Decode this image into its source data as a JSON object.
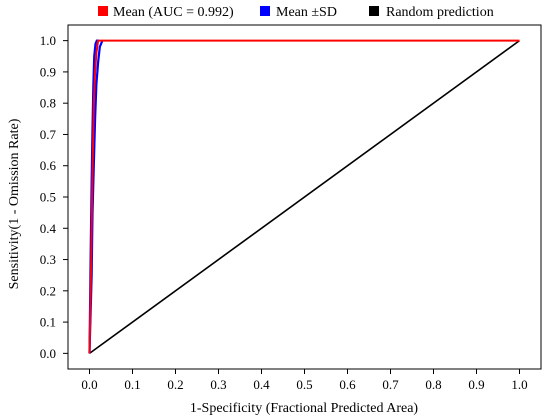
{
  "chart_data": {
    "type": "line",
    "title": "",
    "xlabel": "1-Specificity (Fractional Predicted Area)",
    "ylabel": "Sensitivity(1 - Omission Rate)",
    "xlim": [
      -0.05,
      1.05
    ],
    "ylim": [
      -0.05,
      1.05
    ],
    "x_ticks": [
      0.0,
      0.1,
      0.2,
      0.3,
      0.4,
      0.5,
      0.6,
      0.7,
      0.8,
      0.9,
      1.0
    ],
    "x_tick_labels": [
      "0.0",
      "0.1",
      "0.2",
      "0.3",
      "0.4",
      "0.5",
      "0.6",
      "0.7",
      "0.8",
      "0.9",
      "1.0"
    ],
    "y_ticks": [
      0.0,
      0.1,
      0.2,
      0.3,
      0.4,
      0.5,
      0.6,
      0.7,
      0.8,
      0.9,
      1.0
    ],
    "y_tick_labels": [
      "0.0",
      "0.1",
      "0.2",
      "0.3",
      "0.4",
      "0.5",
      "0.6",
      "0.7",
      "0.8",
      "0.9",
      "1.0"
    ],
    "grid": false,
    "legend_position": "top",
    "legend": [
      {
        "label": "Mean (AUC = 0.992)",
        "color": "#ff0000"
      },
      {
        "label": "Mean ±SD",
        "color": "#0000ff"
      },
      {
        "label": "Random prediction",
        "color": "#000000"
      }
    ],
    "series": [
      {
        "name": "Mean (AUC = 0.992)",
        "color": "#ff0000",
        "x": [
          0.0,
          0.004,
          0.006,
          0.008,
          0.01,
          0.013,
          0.016,
          0.02,
          0.025,
          1.0
        ],
        "y": [
          0.0,
          0.3,
          0.5,
          0.65,
          0.8,
          0.9,
          0.96,
          1.0,
          1.0,
          1.0
        ]
      },
      {
        "name": "Mean +SD",
        "color": "#0000ff",
        "x": [
          0.0,
          0.003,
          0.005,
          0.007,
          0.009,
          0.011,
          0.014,
          0.017,
          0.022
        ],
        "y": [
          0.0,
          0.35,
          0.55,
          0.72,
          0.86,
          0.95,
          0.99,
          1.0,
          1.0
        ]
      },
      {
        "name": "Mean -SD",
        "color": "#0000ff",
        "x": [
          0.0,
          0.005,
          0.007,
          0.01,
          0.013,
          0.016,
          0.02,
          0.024,
          0.03
        ],
        "y": [
          0.0,
          0.25,
          0.45,
          0.6,
          0.75,
          0.86,
          0.93,
          0.98,
          1.0
        ]
      },
      {
        "name": "Random prediction",
        "color": "#000000",
        "x": [
          0.0,
          1.0
        ],
        "y": [
          0.0,
          1.0
        ]
      }
    ]
  }
}
